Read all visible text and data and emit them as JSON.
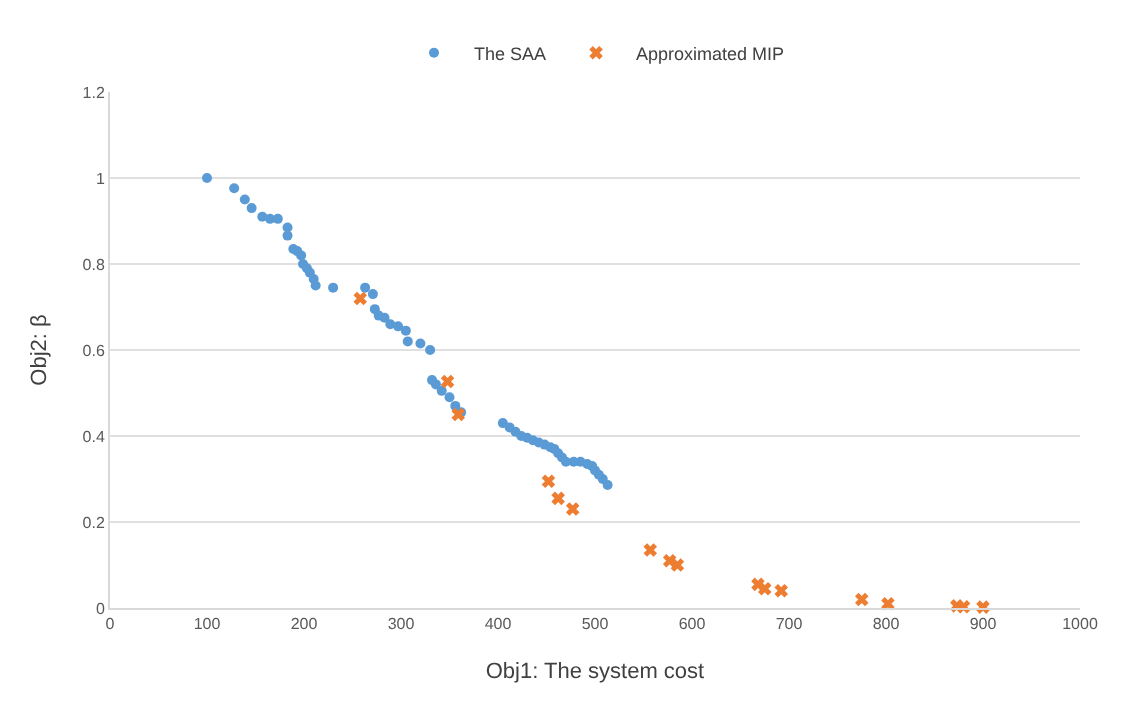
{
  "chart_data": {
    "type": "scatter",
    "xlabel": "Obj1: The system cost",
    "ylabel": "Obj2: β",
    "xlim": [
      0,
      1000
    ],
    "xticks": [
      0,
      100,
      200,
      300,
      400,
      500,
      600,
      700,
      800,
      900,
      1000
    ],
    "ylim": [
      0,
      1.2
    ],
    "yticks": [
      0,
      0.2,
      0.4,
      0.6,
      0.8,
      1,
      1.2
    ],
    "grid": "y",
    "legend": "top",
    "series": [
      {
        "name": "The SAA",
        "color": "#5b9bd5",
        "marker": "circle",
        "x": [
          100,
          128,
          139,
          146,
          157,
          165,
          173,
          183,
          183,
          189,
          193,
          197,
          199,
          203,
          206,
          210,
          212,
          230,
          263,
          271,
          273,
          277,
          283,
          289,
          297,
          305,
          307,
          320,
          330,
          332,
          336,
          342,
          350,
          356,
          362,
          405,
          412,
          418,
          424,
          430,
          436,
          442,
          448,
          454,
          458,
          462,
          466,
          470,
          478,
          485,
          492,
          497,
          500,
          504,
          508,
          513
        ],
        "values": [
          1.0,
          0.976,
          0.95,
          0.93,
          0.91,
          0.905,
          0.905,
          0.885,
          0.866,
          0.835,
          0.83,
          0.82,
          0.8,
          0.79,
          0.78,
          0.765,
          0.75,
          0.745,
          0.745,
          0.73,
          0.695,
          0.68,
          0.675,
          0.66,
          0.655,
          0.645,
          0.62,
          0.615,
          0.6,
          0.53,
          0.52,
          0.505,
          0.49,
          0.47,
          0.455,
          0.43,
          0.42,
          0.41,
          0.4,
          0.396,
          0.39,
          0.385,
          0.38,
          0.374,
          0.37,
          0.36,
          0.35,
          0.34,
          0.34,
          0.34,
          0.335,
          0.33,
          0.32,
          0.31,
          0.3,
          0.286
        ]
      },
      {
        "name": "Approximated MIP",
        "color": "#ed7d31",
        "marker": "cross",
        "x": [
          258,
          348,
          359,
          452,
          462,
          477,
          557,
          577,
          585,
          668,
          675,
          692,
          775,
          802,
          873,
          880,
          900
        ],
        "values": [
          0.72,
          0.527,
          0.45,
          0.295,
          0.255,
          0.23,
          0.135,
          0.11,
          0.1,
          0.055,
          0.045,
          0.04,
          0.02,
          0.01,
          0.005,
          0.003,
          0.002
        ]
      }
    ]
  }
}
